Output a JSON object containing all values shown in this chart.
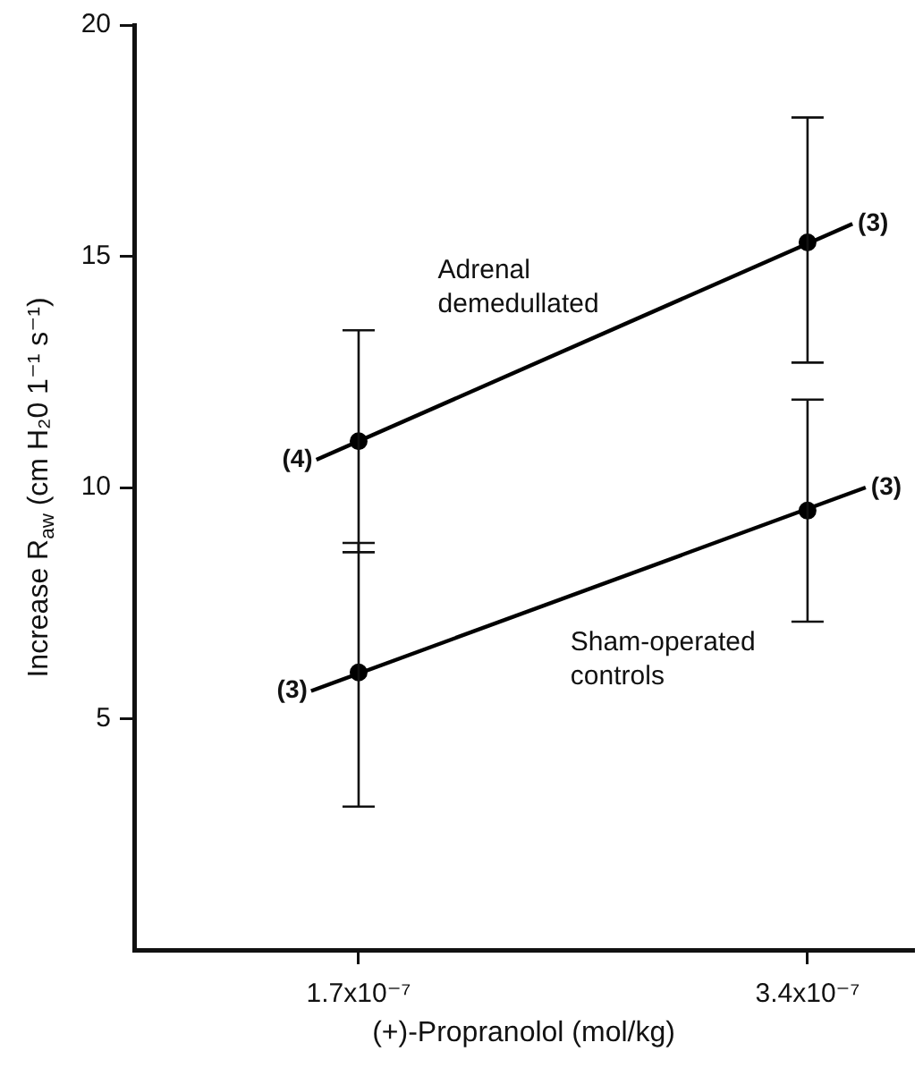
{
  "chart_data": {
    "type": "scatter",
    "xlabel": "(+)-Propranolol (mol/kg)",
    "ylabel": "Increase R$_{aw}$ (cm H₂0 1⁻¹ s⁻¹)",
    "xlim": [
      8.5e-08,
      3.8e-07
    ],
    "xticks": [
      {
        "value": 1.7e-07,
        "label": "1.7x10⁻⁷"
      },
      {
        "value": 3.4e-07,
        "label": "3.4x10⁻⁷"
      }
    ],
    "ylim": [
      0,
      20
    ],
    "yticks": [
      5,
      10,
      15,
      20
    ],
    "grid": false,
    "legend": false,
    "marker": "circle",
    "line_style": "solid",
    "series": [
      {
        "name": "Adrenal demedullated",
        "type": "line",
        "marker": "none",
        "color": "#000000",
        "x": [
          1.54e-07,
          3.57e-07
        ],
        "values": [
          10.6,
          15.7
        ]
      },
      {
        "color": "#000000",
        "x": [
          1.7e-07,
          3.4e-07
        ],
        "values": [
          11.0,
          15.3
        ],
        "errors": [
          [
            8.6,
            13.4
          ],
          [
            12.7,
            18.0
          ]
        ]
      },
      {
        "name": "Sham-operated controls",
        "type": "line",
        "marker": "none",
        "color": "#000000",
        "x": [
          1.52e-07,
          3.62e-07
        ],
        "values": [
          5.6,
          10.0
        ]
      },
      {
        "color": "#000000",
        "x": [
          1.7e-07,
          3.4e-07
        ],
        "values": [
          6.0,
          9.5
        ],
        "errors": [
          [
            3.1,
            8.8
          ],
          [
            7.1,
            11.9
          ]
        ]
      }
    ],
    "annotations": [
      {
        "text": "(4)",
        "x": 1.54e-07,
        "y": 10.6
      },
      {
        "text": "(3)",
        "x": 3.57e-07,
        "y": 15.7
      },
      {
        "text": "(3)",
        "x": 1.52e-07,
        "y": 5.6
      },
      {
        "text": "(3)",
        "x": 3.62e-07,
        "y": 10.0
      }
    ]
  }
}
